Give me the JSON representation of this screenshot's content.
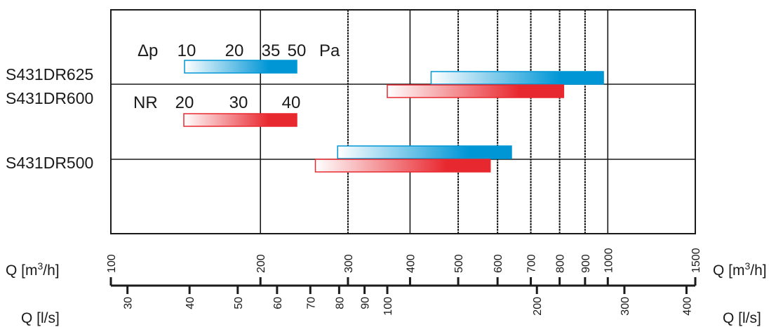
{
  "chart_data": {
    "type": "bar",
    "title": "",
    "x_scale": "log",
    "xlim_m3h": [
      100,
      1500
    ],
    "grid": true,
    "rows": [
      {
        "label": "S431DR625",
        "bars": [
          {
            "metric": "dp",
            "from": 441,
            "to": 980
          },
          {
            "metric": "NR",
            "from": 360,
            "to": 815
          }
        ]
      },
      {
        "label": "S431DR600",
        "bars": []
      },
      {
        "label": "S431DR500",
        "bars": [
          {
            "metric": "dp",
            "from": 286,
            "to": 640
          },
          {
            "metric": "NR",
            "from": 258,
            "to": 580
          }
        ]
      }
    ],
    "legend": {
      "dp": {
        "symbol": "Δp",
        "ticks": [
          "10",
          "20",
          "35",
          "50"
        ],
        "unit": "Pa",
        "color": "#0096d6"
      },
      "NR": {
        "symbol": "NR",
        "ticks": [
          "20",
          "30",
          "40"
        ],
        "color": "#e8282f"
      }
    },
    "axis_m3h": {
      "label_prefix": "Q [m",
      "label_sup": "3",
      "label_suffix": "/h]",
      "ticks": [
        100,
        200,
        300,
        400,
        500,
        600,
        700,
        800,
        900,
        1000,
        1500
      ]
    },
    "axis_ls": {
      "label": "Q [l/s]",
      "ticks": [
        30,
        40,
        50,
        60,
        70,
        80,
        90,
        100,
        200,
        300,
        400
      ]
    },
    "gridlines_m3h": [
      200,
      300,
      400,
      500,
      600,
      700,
      800,
      900,
      1000
    ]
  }
}
